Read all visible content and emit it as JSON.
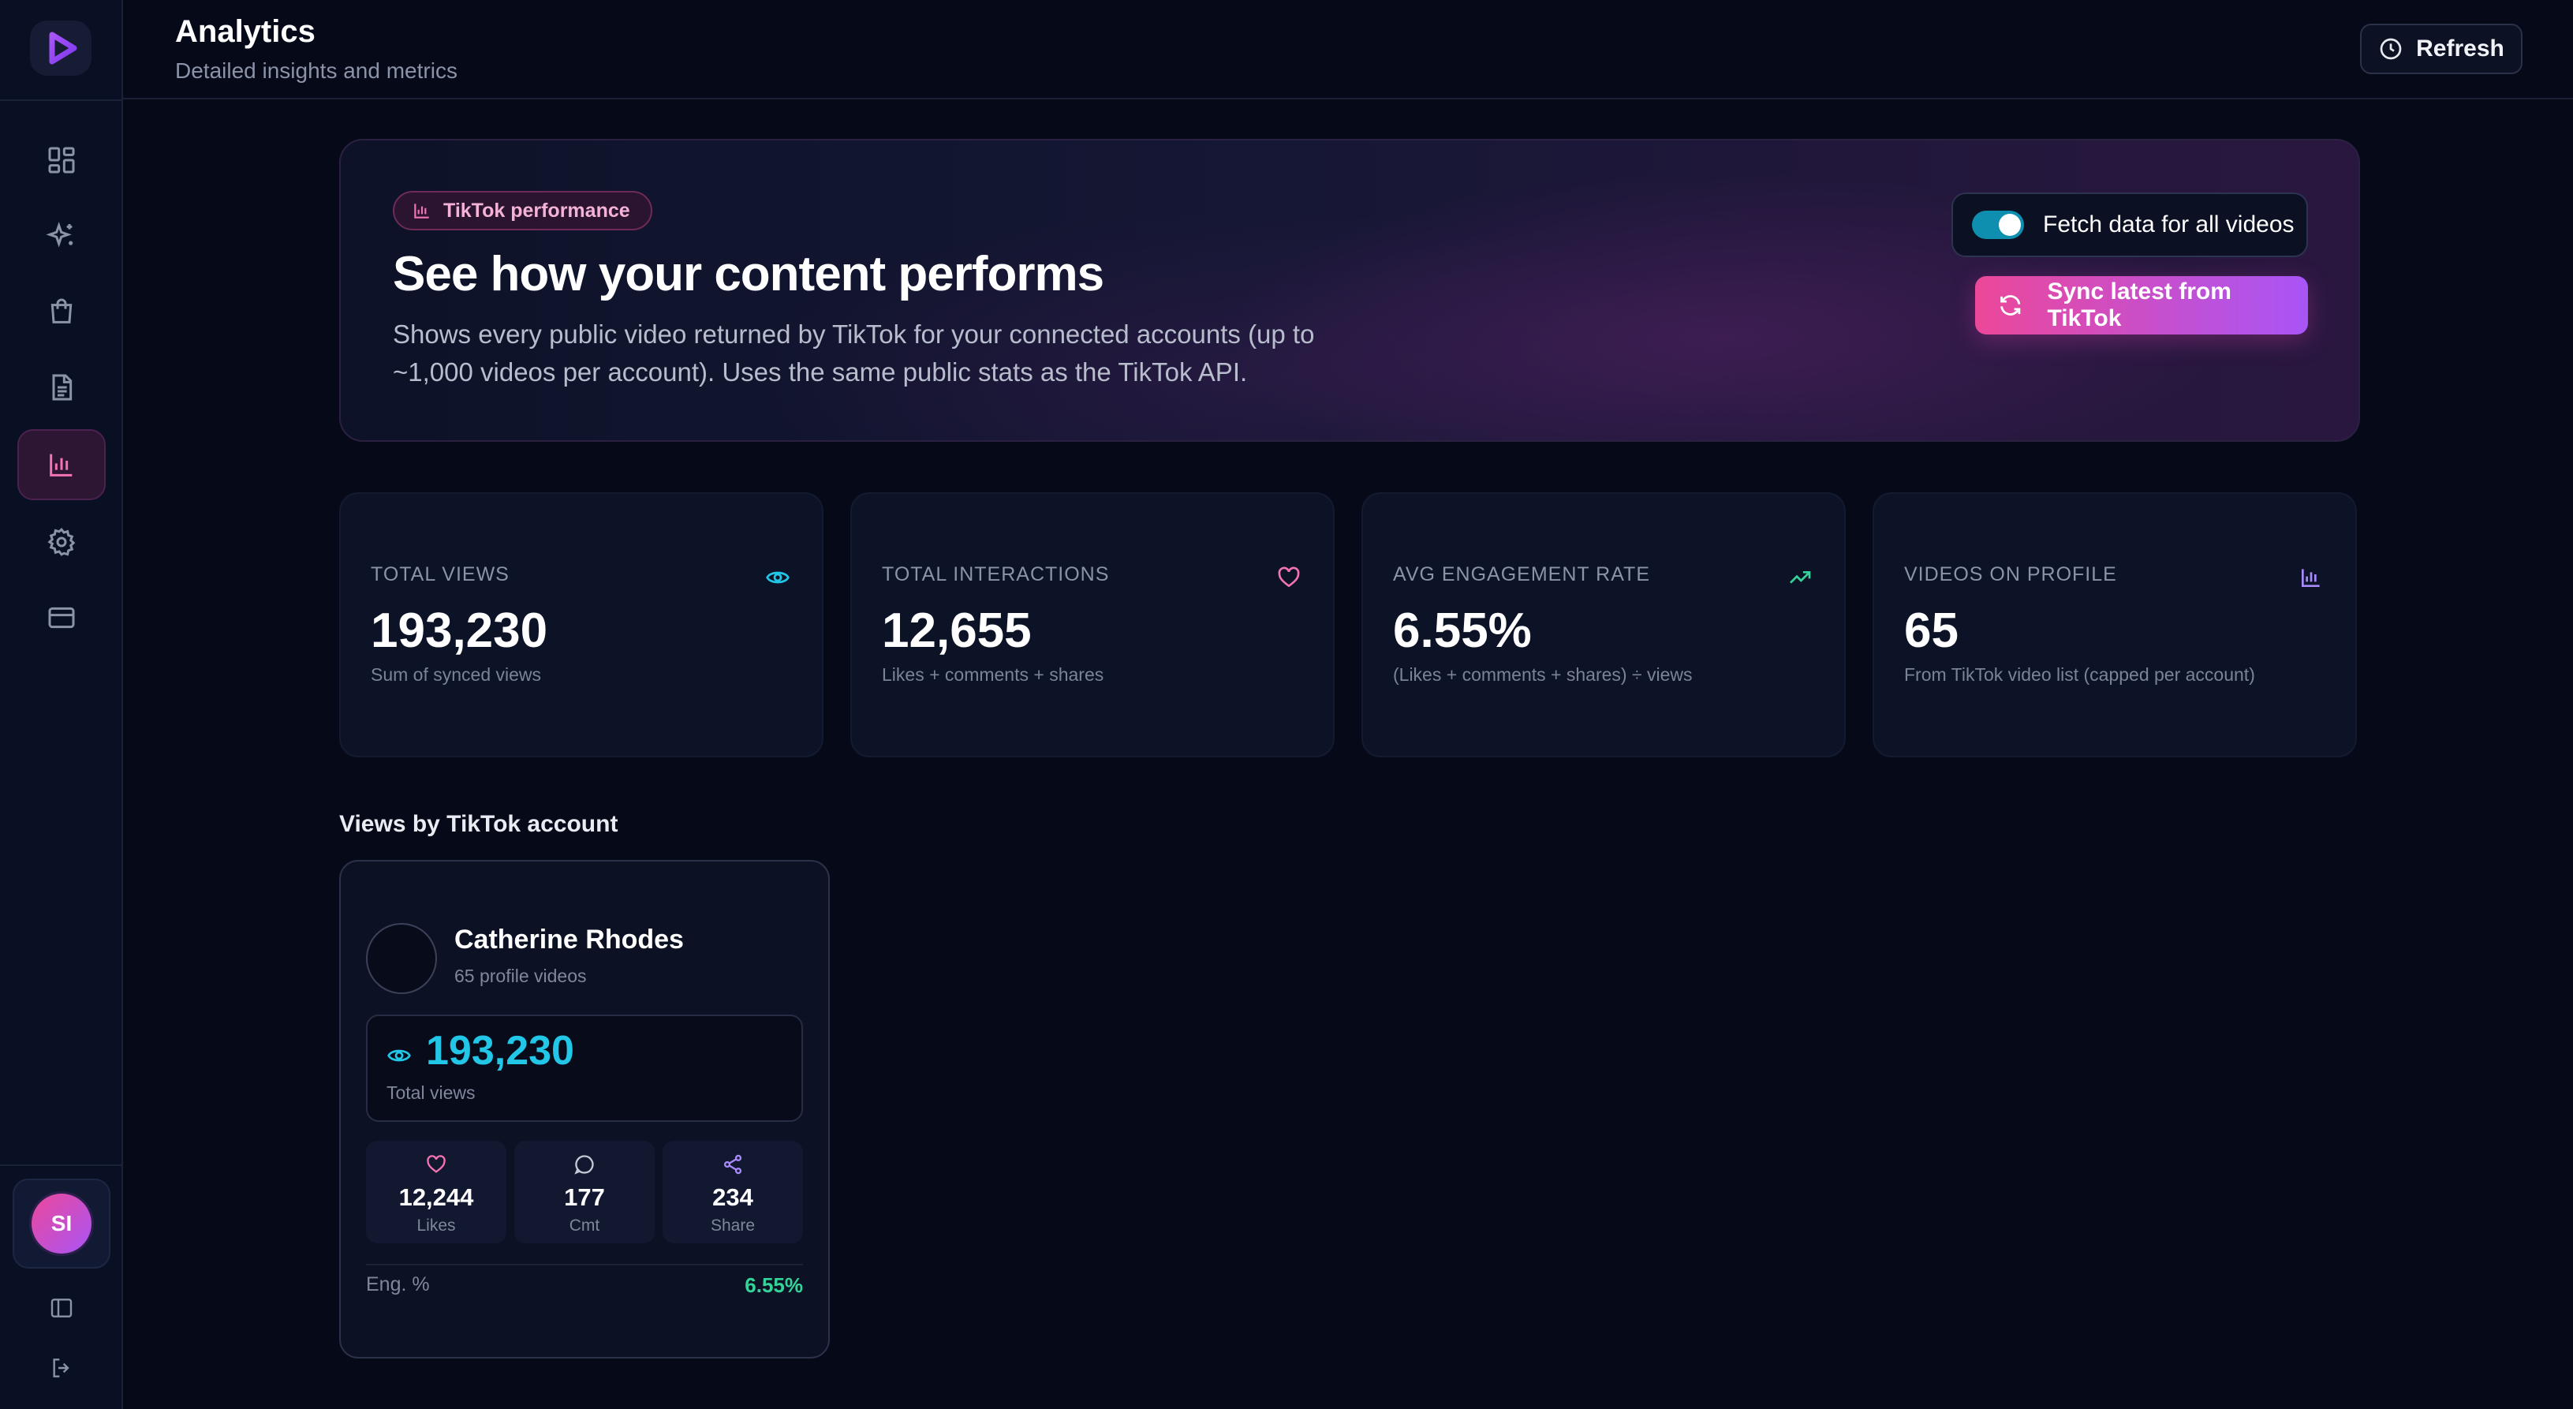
{
  "header": {
    "title": "Analytics",
    "subtitle": "Detailed insights and metrics",
    "refresh_label": "Refresh"
  },
  "sidebar": {
    "items": [
      {
        "icon": "dashboard-icon",
        "active": false
      },
      {
        "icon": "sparkles-icon",
        "active": false
      },
      {
        "icon": "shopping-bag-icon",
        "active": false
      },
      {
        "icon": "document-icon",
        "active": false
      },
      {
        "icon": "bar-chart-icon",
        "active": true
      },
      {
        "icon": "gear-icon",
        "active": false
      },
      {
        "icon": "credit-card-icon",
        "active": false
      }
    ],
    "user_initials": "SI"
  },
  "hero": {
    "badge": "TikTok performance",
    "title": "See how your content performs",
    "description": "Shows every public video returned by TikTok for your connected accounts (up to ~1,000 videos per account). Uses the same public stats as the TikTok API.",
    "toggle_label": "Fetch data for all videos",
    "toggle_on": true,
    "sync_label": "Sync latest from TikTok"
  },
  "stats": [
    {
      "label": "TOTAL VIEWS",
      "value": "193,230",
      "note": "Sum of synced views",
      "icon": "eye-icon",
      "color": "#22c7e8"
    },
    {
      "label": "TOTAL INTERACTIONS",
      "value": "12,655",
      "note": "Likes + comments + shares",
      "icon": "heart-icon",
      "color": "#f472b6"
    },
    {
      "label": "AVG ENGAGEMENT RATE",
      "value": "6.55%",
      "note": "(Likes + comments + shares) ÷ views",
      "icon": "trending-up-icon",
      "color": "#34d399"
    },
    {
      "label": "VIDEOS ON PROFILE",
      "value": "65",
      "note": "From TikTok video list (capped per account)",
      "icon": "bar-chart-icon",
      "color": "#a78bfa"
    }
  ],
  "accounts_section": {
    "title": "Views by TikTok account",
    "account": {
      "name": "Catherine Rhodes",
      "videos": "65 profile videos",
      "views_value": "193,230",
      "views_label": "Total views",
      "likes_value": "12,244",
      "likes_label": "Likes",
      "comments_value": "177",
      "comments_label": "Cmt",
      "shares_value": "234",
      "shares_label": "Share",
      "eng_label": "Eng. %",
      "eng_value": "6.55%"
    }
  },
  "colors": {
    "accent_pink": "#ec4899",
    "accent_purple": "#a855f7",
    "cyan": "#22c7e8",
    "green": "#34d399"
  }
}
